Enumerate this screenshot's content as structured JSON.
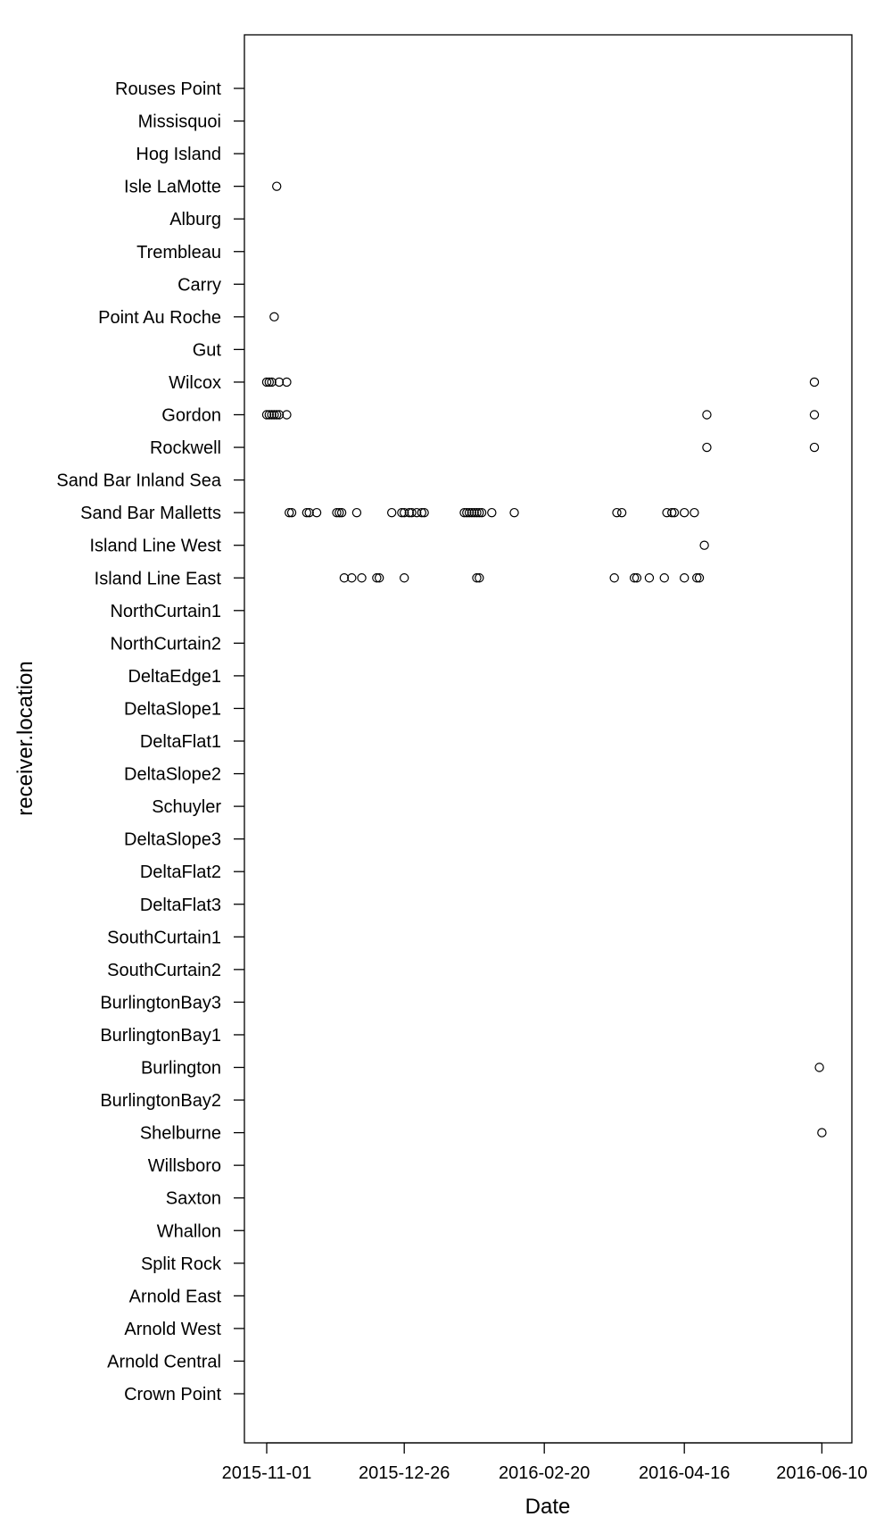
{
  "chart_data": {
    "type": "scatter",
    "title": "",
    "xlabel": "Date",
    "ylabel": "receiver.location",
    "grid": false,
    "x_is_date": true,
    "xlim": [
      "2015-10-25",
      "2016-06-19"
    ],
    "x_ticks": [
      "2015-11-01",
      "2015-12-26",
      "2016-02-20",
      "2016-04-16",
      "2016-06-10"
    ],
    "categories": [
      "Rouses Point",
      "Missisquoi",
      "Hog Island",
      "Isle LaMotte",
      "Alburg",
      "Trembleau",
      "Carry",
      "Point Au Roche",
      "Gut",
      "Wilcox",
      "Gordon",
      "Rockwell",
      "Sand Bar Inland Sea",
      "Sand Bar Malletts",
      "Island Line West",
      "Island Line East",
      "NorthCurtain1",
      "NorthCurtain2",
      "DeltaEdge1",
      "DeltaSlope1",
      "DeltaFlat1",
      "DeltaSlope2",
      "Schuyler",
      "DeltaSlope3",
      "DeltaFlat2",
      "DeltaFlat3",
      "SouthCurtain1",
      "SouthCurtain2",
      "BurlingtonBay3",
      "BurlingtonBay1",
      "Burlington",
      "BurlingtonBay2",
      "Shelburne",
      "Willsboro",
      "Saxton",
      "Whallon",
      "Split Rock",
      "Arnold East",
      "Arnold West",
      "Arnold Central",
      "Crown Point"
    ],
    "points": [
      {
        "y": "Isle LaMotte",
        "x": "2015-11-05"
      },
      {
        "y": "Point Au Roche",
        "x": "2015-11-04"
      },
      {
        "y": "Wilcox",
        "x": "2015-11-01"
      },
      {
        "y": "Wilcox",
        "x": "2015-11-02"
      },
      {
        "y": "Wilcox",
        "x": "2015-11-03"
      },
      {
        "y": "Wilcox",
        "x": "2015-11-06"
      },
      {
        "y": "Wilcox",
        "x": "2015-11-09"
      },
      {
        "y": "Wilcox",
        "x": "2016-06-07"
      },
      {
        "y": "Gordon",
        "x": "2015-11-01"
      },
      {
        "y": "Gordon",
        "x": "2015-11-02"
      },
      {
        "y": "Gordon",
        "x": "2015-11-03"
      },
      {
        "y": "Gordon",
        "x": "2015-11-04"
      },
      {
        "y": "Gordon",
        "x": "2015-11-05"
      },
      {
        "y": "Gordon",
        "x": "2015-11-06"
      },
      {
        "y": "Gordon",
        "x": "2015-11-09"
      },
      {
        "y": "Gordon",
        "x": "2016-04-25"
      },
      {
        "y": "Gordon",
        "x": "2016-06-07"
      },
      {
        "y": "Rockwell",
        "x": "2016-04-25"
      },
      {
        "y": "Rockwell",
        "x": "2016-06-07"
      },
      {
        "y": "Sand Bar Malletts",
        "x": "2015-11-10"
      },
      {
        "y": "Sand Bar Malletts",
        "x": "2015-11-11"
      },
      {
        "y": "Sand Bar Malletts",
        "x": "2015-11-17"
      },
      {
        "y": "Sand Bar Malletts",
        "x": "2015-11-18"
      },
      {
        "y": "Sand Bar Malletts",
        "x": "2015-11-21"
      },
      {
        "y": "Sand Bar Malletts",
        "x": "2015-11-29"
      },
      {
        "y": "Sand Bar Malletts",
        "x": "2015-11-30"
      },
      {
        "y": "Sand Bar Malletts",
        "x": "2015-12-01"
      },
      {
        "y": "Sand Bar Malletts",
        "x": "2015-12-07"
      },
      {
        "y": "Sand Bar Malletts",
        "x": "2015-12-21"
      },
      {
        "y": "Sand Bar Malletts",
        "x": "2015-12-25"
      },
      {
        "y": "Sand Bar Malletts",
        "x": "2015-12-26"
      },
      {
        "y": "Sand Bar Malletts",
        "x": "2015-12-28"
      },
      {
        "y": "Sand Bar Malletts",
        "x": "2015-12-29"
      },
      {
        "y": "Sand Bar Malletts",
        "x": "2015-12-31"
      },
      {
        "y": "Sand Bar Malletts",
        "x": "2016-01-02"
      },
      {
        "y": "Sand Bar Malletts",
        "x": "2016-01-03"
      },
      {
        "y": "Sand Bar Malletts",
        "x": "2016-01-19"
      },
      {
        "y": "Sand Bar Malletts",
        "x": "2016-01-20"
      },
      {
        "y": "Sand Bar Malletts",
        "x": "2016-01-21"
      },
      {
        "y": "Sand Bar Malletts",
        "x": "2016-01-22"
      },
      {
        "y": "Sand Bar Malletts",
        "x": "2016-01-23"
      },
      {
        "y": "Sand Bar Malletts",
        "x": "2016-01-24"
      },
      {
        "y": "Sand Bar Malletts",
        "x": "2016-01-25"
      },
      {
        "y": "Sand Bar Malletts",
        "x": "2016-01-26"
      },
      {
        "y": "Sand Bar Malletts",
        "x": "2016-01-30"
      },
      {
        "y": "Sand Bar Malletts",
        "x": "2016-02-08"
      },
      {
        "y": "Sand Bar Malletts",
        "x": "2016-03-20"
      },
      {
        "y": "Sand Bar Malletts",
        "x": "2016-03-22"
      },
      {
        "y": "Sand Bar Malletts",
        "x": "2016-04-09"
      },
      {
        "y": "Sand Bar Malletts",
        "x": "2016-04-11"
      },
      {
        "y": "Sand Bar Malletts",
        "x": "2016-04-12"
      },
      {
        "y": "Sand Bar Malletts",
        "x": "2016-04-16"
      },
      {
        "y": "Sand Bar Malletts",
        "x": "2016-04-20"
      },
      {
        "y": "Island Line West",
        "x": "2016-04-24"
      },
      {
        "y": "Island Line East",
        "x": "2015-12-02"
      },
      {
        "y": "Island Line East",
        "x": "2015-12-05"
      },
      {
        "y": "Island Line East",
        "x": "2015-12-09"
      },
      {
        "y": "Island Line East",
        "x": "2015-12-15"
      },
      {
        "y": "Island Line East",
        "x": "2015-12-16"
      },
      {
        "y": "Island Line East",
        "x": "2015-12-26"
      },
      {
        "y": "Island Line East",
        "x": "2016-01-24"
      },
      {
        "y": "Island Line East",
        "x": "2016-01-25"
      },
      {
        "y": "Island Line East",
        "x": "2016-03-19"
      },
      {
        "y": "Island Line East",
        "x": "2016-03-27"
      },
      {
        "y": "Island Line East",
        "x": "2016-03-28"
      },
      {
        "y": "Island Line East",
        "x": "2016-04-02"
      },
      {
        "y": "Island Line East",
        "x": "2016-04-08"
      },
      {
        "y": "Island Line East",
        "x": "2016-04-16"
      },
      {
        "y": "Island Line East",
        "x": "2016-04-21"
      },
      {
        "y": "Island Line East",
        "x": "2016-04-22"
      },
      {
        "y": "Burlington",
        "x": "2016-06-09"
      },
      {
        "y": "Shelburne",
        "x": "2016-06-10"
      }
    ]
  }
}
